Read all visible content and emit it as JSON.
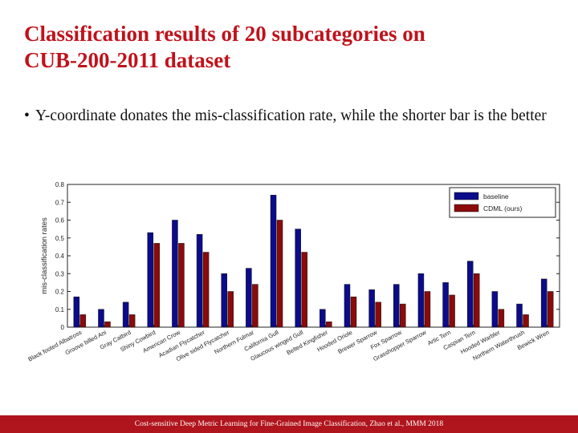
{
  "slide": {
    "title_line1": "Classification results of 20 subcategories on",
    "title_line2": "CUB-200-2011 dataset",
    "bullet_symbol": "•",
    "bullet_text": "Y-coordinate donates the mis-classification rate, while the shorter bar is the better",
    "footer": "Cost-sensitive Deep Metric Learning for Fine-Grained Image Classification, Zhao et al., MMM 2018",
    "colors": {
      "title": "#c0121b",
      "footer_bar": "#b0141c"
    }
  },
  "chart_data": {
    "type": "bar",
    "ylabel": "mis-classification rates",
    "ylim": [
      0,
      0.8
    ],
    "yticks": [
      "0",
      "0.1",
      "0.2",
      "0.3",
      "0.4",
      "0.5",
      "0.6",
      "0.7",
      "0.8"
    ],
    "legend_position": "top-right",
    "grid": false,
    "categories": [
      "Black footed Albatross",
      "Groove billed Ani",
      "Gray Catbird",
      "Shiny Cowbird",
      "American Crow",
      "Acadian Flycatcher",
      "Olive sided Flycatcher",
      "Northern Fulmar",
      "California Gull",
      "Glaucous winged Gull",
      "Belted Kingfisher",
      "Hooded Oriole",
      "Brewer Sparrow",
      "Fox Sparrow",
      "Grasshopper Sparrow",
      "Artic Tern",
      "Caspian Tern",
      "Hooded Warbler",
      "Northern Waterthrush",
      "Bewick Wren"
    ],
    "series": [
      {
        "name": "baseline",
        "color": "#0b0b8c",
        "values": [
          0.17,
          0.1,
          0.14,
          0.53,
          0.6,
          0.52,
          0.3,
          0.33,
          0.74,
          0.55,
          0.1,
          0.24,
          0.21,
          0.24,
          0.3,
          0.25,
          0.37,
          0.2,
          0.13,
          0.27
        ]
      },
      {
        "name": "CDML (ours)",
        "color": "#8b0a0a",
        "values": [
          0.07,
          0.03,
          0.07,
          0.47,
          0.47,
          0.42,
          0.2,
          0.24,
          0.6,
          0.42,
          0.03,
          0.17,
          0.14,
          0.13,
          0.2,
          0.18,
          0.3,
          0.1,
          0.07,
          0.2
        ]
      }
    ]
  }
}
